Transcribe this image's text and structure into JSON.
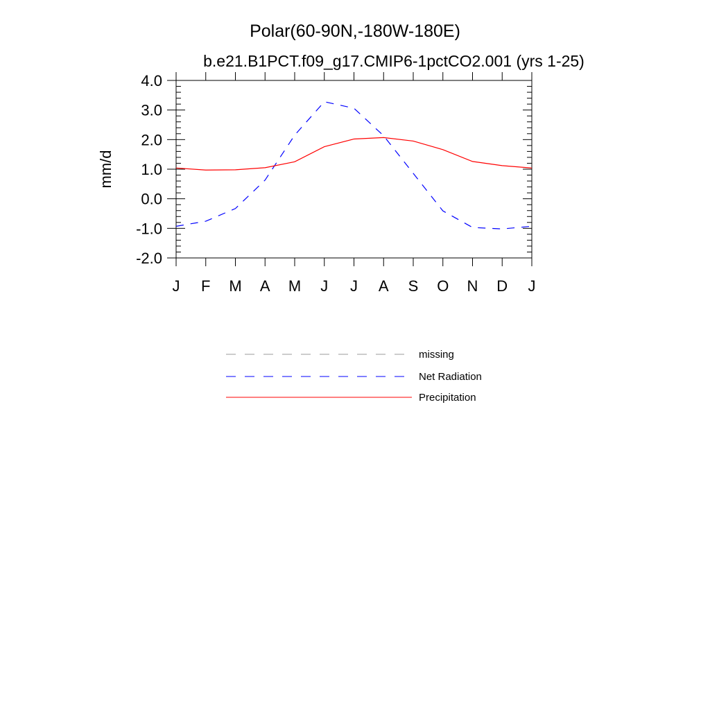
{
  "chart_data": {
    "type": "line",
    "title": "Polar(60-90N,-180W-180E)",
    "subtitle": "b.e21.B1PCT.f09_g17.CMIP6-1pctCO2.001 (yrs 1-25)",
    "xlabel": "",
    "ylabel": "mm/d",
    "ylim": [
      -2.0,
      4.0
    ],
    "yticks": [
      "4.0",
      "3.0",
      "2.0",
      "1.0",
      "0.0",
      "-1.0",
      "-2.0"
    ],
    "x_ticks": [
      "J",
      "F",
      "M",
      "A",
      "M",
      "J",
      "J",
      "A",
      "S",
      "O",
      "N",
      "D",
      "J"
    ],
    "grid": false,
    "legend_position": "bottom",
    "series": [
      {
        "name": "missing",
        "style": "dashed",
        "color": "#999999",
        "values": []
      },
      {
        "name": "Net Radiation",
        "style": "dashed",
        "color": "#0000ff",
        "values": [
          -0.93,
          -0.76,
          -0.33,
          0.63,
          2.15,
          3.28,
          3.06,
          2.13,
          0.86,
          -0.41,
          -0.97,
          -1.02,
          -0.93
        ]
      },
      {
        "name": "Precipitation",
        "style": "solid",
        "color": "#ff0000",
        "values": [
          1.04,
          0.97,
          0.98,
          1.05,
          1.25,
          1.76,
          2.02,
          2.07,
          1.95,
          1.66,
          1.26,
          1.12,
          1.04
        ]
      }
    ]
  }
}
